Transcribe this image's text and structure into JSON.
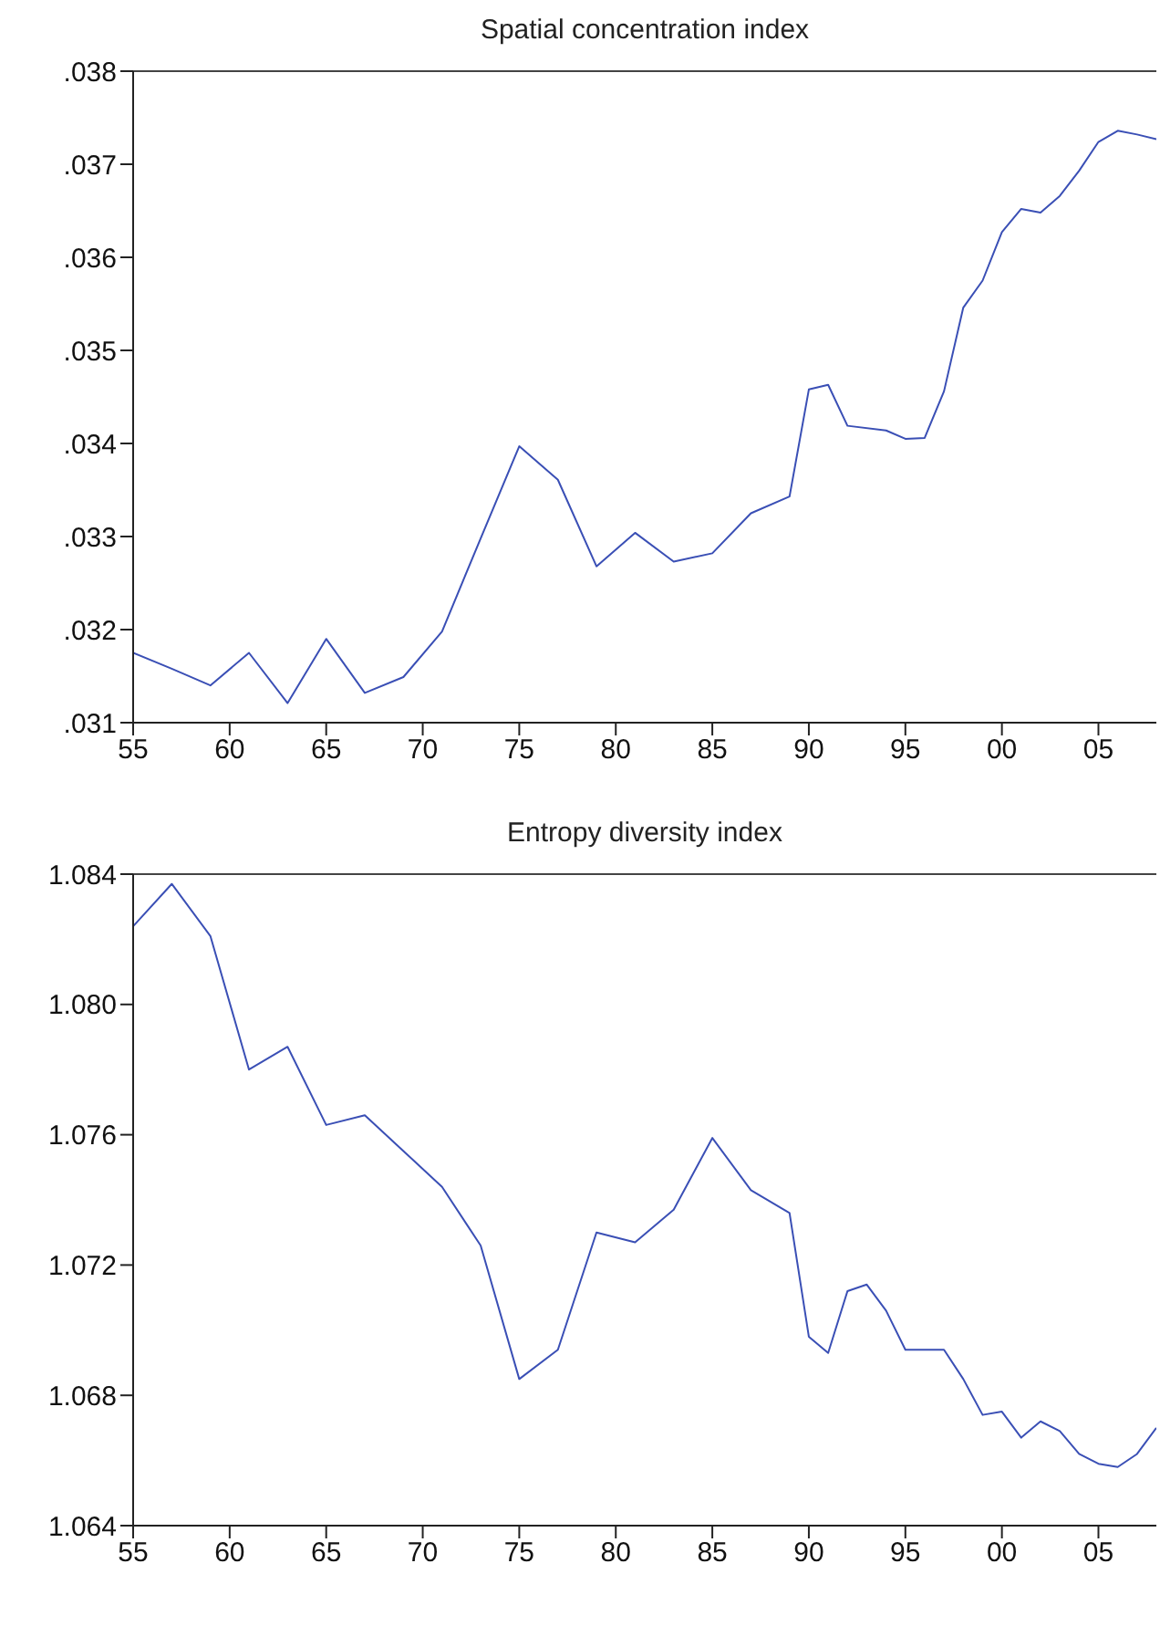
{
  "chart_data": [
    {
      "type": "line",
      "title": "Spatial concentration index",
      "x": [
        1955,
        1957,
        1959,
        1961,
        1963,
        1965,
        1967,
        1969,
        1971,
        1973,
        1975,
        1977,
        1979,
        1981,
        1983,
        1985,
        1987,
        1989,
        1990,
        1991,
        1992,
        1994,
        1995,
        1996,
        1997,
        1998,
        1999,
        2000,
        2001,
        2002,
        2003,
        2004,
        2005,
        2006,
        2007,
        2008
      ],
      "series": [
        {
          "color": "#3a4fb5",
          "values": [
            0.03175,
            0.03158,
            0.0314,
            0.03175,
            0.03121,
            0.0319,
            0.03132,
            0.03149,
            0.03198,
            0.03298,
            0.03397,
            0.03361,
            0.03268,
            0.03304,
            0.03273,
            0.03282,
            0.03325,
            0.03343,
            0.03458,
            0.03463,
            0.03419,
            0.03414,
            0.03405,
            0.03406,
            0.03456,
            0.03546,
            0.03575,
            0.03627,
            0.03652,
            0.03648,
            0.03666,
            0.03693,
            0.03724,
            0.03736,
            0.03732,
            0.03727
          ]
        }
      ],
      "xlim": [
        1955,
        2008
      ],
      "xticks": [
        {
          "value": 1955,
          "label": "55"
        },
        {
          "value": 1960,
          "label": "60"
        },
        {
          "value": 1965,
          "label": "65"
        },
        {
          "value": 1970,
          "label": "70"
        },
        {
          "value": 1975,
          "label": "75"
        },
        {
          "value": 1980,
          "label": "80"
        },
        {
          "value": 1985,
          "label": "85"
        },
        {
          "value": 1990,
          "label": "90"
        },
        {
          "value": 1995,
          "label": "95"
        },
        {
          "value": 2000,
          "label": "00"
        },
        {
          "value": 2005,
          "label": "05"
        }
      ],
      "ylim": [
        0.031,
        0.038
      ],
      "yticks": [
        {
          "value": 0.031,
          "label": ".031"
        },
        {
          "value": 0.032,
          "label": ".032"
        },
        {
          "value": 0.033,
          "label": ".033"
        },
        {
          "value": 0.034,
          "label": ".034"
        },
        {
          "value": 0.035,
          "label": ".035"
        },
        {
          "value": 0.036,
          "label": ".036"
        },
        {
          "value": 0.037,
          "label": ".037"
        },
        {
          "value": 0.038,
          "label": ".038"
        }
      ],
      "grid": false,
      "legend": false,
      "marker": "none",
      "line_style": "solid"
    },
    {
      "type": "line",
      "title": "Entropy diversity index",
      "x": [
        1955,
        1957,
        1959,
        1961,
        1963,
        1965,
        1967,
        1969,
        1971,
        1973,
        1975,
        1977,
        1979,
        1981,
        1983,
        1985,
        1987,
        1989,
        1990,
        1991,
        1992,
        1993,
        1994,
        1995,
        1996,
        1997,
        1998,
        1999,
        2000,
        2001,
        2002,
        2003,
        2004,
        2005,
        2006,
        2007,
        2008
      ],
      "series": [
        {
          "color": "#3a4fb5",
          "values": [
            1.0824,
            1.0837,
            1.0821,
            1.078,
            1.0787,
            1.0763,
            1.0766,
            1.0755,
            1.0744,
            1.0726,
            1.0685,
            1.0694,
            1.073,
            1.0727,
            1.0737,
            1.0759,
            1.0743,
            1.0736,
            1.0698,
            1.0693,
            1.0712,
            1.0714,
            1.0706,
            1.0694,
            1.0694,
            1.0694,
            1.0685,
            1.0674,
            1.0675,
            1.0667,
            1.0672,
            1.0669,
            1.0662,
            1.0659,
            1.0658,
            1.0662,
            1.067
          ]
        }
      ],
      "xlim": [
        1955,
        2008
      ],
      "xticks": [
        {
          "value": 1955,
          "label": "55"
        },
        {
          "value": 1960,
          "label": "60"
        },
        {
          "value": 1965,
          "label": "65"
        },
        {
          "value": 1970,
          "label": "70"
        },
        {
          "value": 1975,
          "label": "75"
        },
        {
          "value": 1980,
          "label": "80"
        },
        {
          "value": 1985,
          "label": "85"
        },
        {
          "value": 1990,
          "label": "90"
        },
        {
          "value": 1995,
          "label": "95"
        },
        {
          "value": 2000,
          "label": "00"
        },
        {
          "value": 2005,
          "label": "05"
        }
      ],
      "ylim": [
        1.064,
        1.084
      ],
      "yticks": [
        {
          "value": 1.064,
          "label": "1.064"
        },
        {
          "value": 1.068,
          "label": "1.068"
        },
        {
          "value": 1.072,
          "label": "1.072"
        },
        {
          "value": 1.076,
          "label": "1.076"
        },
        {
          "value": 1.08,
          "label": "1.080"
        },
        {
          "value": 1.084,
          "label": "1.084"
        }
      ],
      "grid": false,
      "legend": false,
      "marker": "none",
      "line_style": "solid"
    }
  ]
}
